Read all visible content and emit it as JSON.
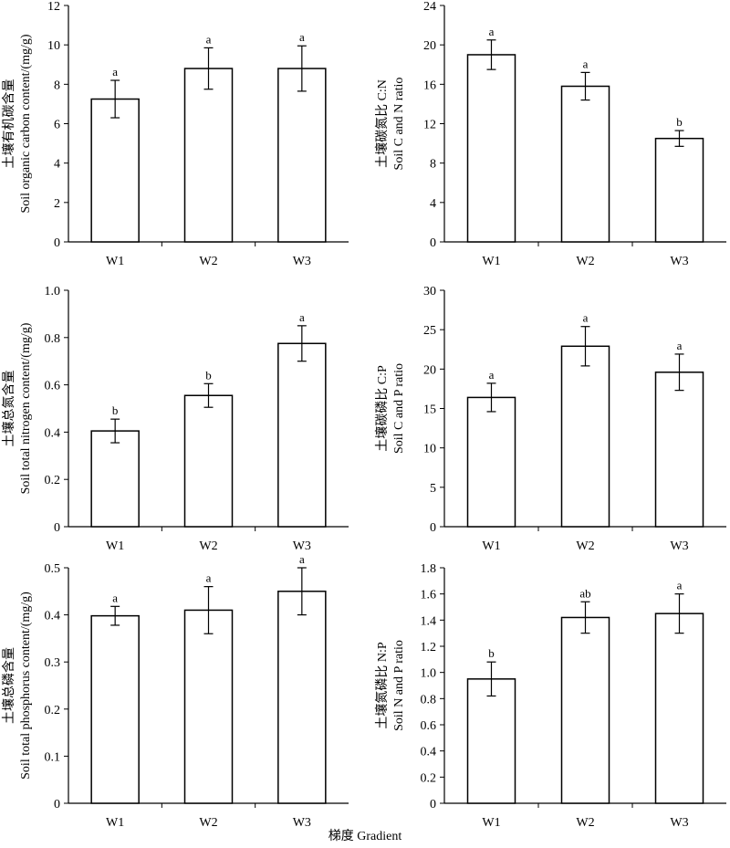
{
  "figure": {
    "xlabel": "梯度 Gradient"
  },
  "chart_data": [
    {
      "type": "bar",
      "categories": [
        "W1",
        "W2",
        "W3"
      ],
      "values": [
        7.25,
        8.8,
        8.8
      ],
      "errors": [
        0.95,
        1.05,
        1.15
      ],
      "sig_labels": [
        "a",
        "a",
        "a"
      ],
      "ylabel_cn": "土壤有机碳含量",
      "ylabel_en": "Soil organic carbon content/(mg/g)",
      "ylim": [
        0,
        12
      ],
      "yticks": [
        0,
        2,
        4,
        6,
        8,
        10,
        12
      ],
      "ytick_labels": [
        "0",
        "2",
        "4",
        "6",
        "8",
        "10",
        "12"
      ]
    },
    {
      "type": "bar",
      "categories": [
        "W1",
        "W2",
        "W3"
      ],
      "values": [
        19.0,
        15.8,
        10.5
      ],
      "errors": [
        1.5,
        1.4,
        0.8
      ],
      "sig_labels": [
        "a",
        "a",
        "b"
      ],
      "ylabel_cn": "土壤碳氮比 C:N",
      "ylabel_en": "Soil C and N ratio",
      "ylim": [
        0,
        24
      ],
      "yticks": [
        0,
        4,
        8,
        12,
        16,
        20,
        24
      ],
      "ytick_labels": [
        "0",
        "4",
        "8",
        "12",
        "16",
        "20",
        "24"
      ]
    },
    {
      "type": "bar",
      "categories": [
        "W1",
        "W2",
        "W3"
      ],
      "values": [
        0.405,
        0.555,
        0.775
      ],
      "errors": [
        0.05,
        0.05,
        0.075
      ],
      "sig_labels": [
        "b",
        "b",
        "a"
      ],
      "ylabel_cn": "土壤总氮含量",
      "ylabel_en": "Soil total nitrogen content/(mg/g)",
      "ylim": [
        0,
        1.0
      ],
      "yticks": [
        0,
        0.2,
        0.4,
        0.6,
        0.8,
        1.0
      ],
      "ytick_labels": [
        "0",
        "0.2",
        "0.4",
        "0.6",
        "0.8",
        "1.0"
      ]
    },
    {
      "type": "bar",
      "categories": [
        "W1",
        "W2",
        "W3"
      ],
      "values": [
        16.4,
        22.9,
        19.6
      ],
      "errors": [
        1.8,
        2.5,
        2.3
      ],
      "sig_labels": [
        "a",
        "a",
        "a"
      ],
      "ylabel_cn": "土壤碳磷比 C:P",
      "ylabel_en": "Soil C and P ratio",
      "ylim": [
        0,
        30
      ],
      "yticks": [
        0,
        5,
        10,
        15,
        20,
        25,
        30
      ],
      "ytick_labels": [
        "0",
        "5",
        "10",
        "15",
        "20",
        "25",
        "30"
      ]
    },
    {
      "type": "bar",
      "categories": [
        "W1",
        "W2",
        "W3"
      ],
      "values": [
        0.398,
        0.41,
        0.45
      ],
      "errors": [
        0.02,
        0.05,
        0.05
      ],
      "sig_labels": [
        "a",
        "a",
        "a"
      ],
      "ylabel_cn": "土壤总磷含量",
      "ylabel_en": "Soil total phosphorus content/(mg/g)",
      "ylim": [
        0,
        0.5
      ],
      "yticks": [
        0,
        0.1,
        0.2,
        0.3,
        0.4,
        0.5
      ],
      "ytick_labels": [
        "0",
        "0.1",
        "0.2",
        "0.3",
        "0.4",
        "0.5"
      ]
    },
    {
      "type": "bar",
      "categories": [
        "W1",
        "W2",
        "W3"
      ],
      "values": [
        0.95,
        1.42,
        1.45
      ],
      "errors": [
        0.13,
        0.12,
        0.15
      ],
      "sig_labels": [
        "b",
        "ab",
        "a"
      ],
      "ylabel_cn": "土壤氮磷比 N:P",
      "ylabel_en": "Soil N and P ratio",
      "ylim": [
        0,
        1.8
      ],
      "yticks": [
        0,
        0.2,
        0.4,
        0.6,
        0.8,
        1.0,
        1.2,
        1.4,
        1.6,
        1.8
      ],
      "ytick_labels": [
        "0",
        "0.2",
        "0.4",
        "0.6",
        "0.8",
        "1.0",
        "1.2",
        "1.4",
        "1.6",
        "1.8"
      ]
    }
  ]
}
